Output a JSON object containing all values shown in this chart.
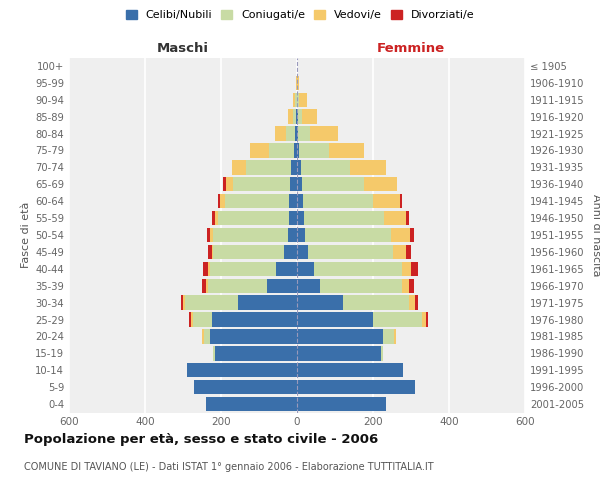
{
  "age_groups": [
    "0-4",
    "5-9",
    "10-14",
    "15-19",
    "20-24",
    "25-29",
    "30-34",
    "35-39",
    "40-44",
    "45-49",
    "50-54",
    "55-59",
    "60-64",
    "65-69",
    "70-74",
    "75-79",
    "80-84",
    "85-89",
    "90-94",
    "95-99",
    "100+"
  ],
  "birth_years": [
    "2001-2005",
    "1996-2000",
    "1991-1995",
    "1986-1990",
    "1981-1985",
    "1976-1980",
    "1971-1975",
    "1966-1970",
    "1961-1965",
    "1956-1960",
    "1951-1955",
    "1946-1950",
    "1941-1945",
    "1936-1940",
    "1931-1935",
    "1926-1930",
    "1921-1925",
    "1916-1920",
    "1911-1915",
    "1906-1910",
    "≤ 1905"
  ],
  "maschi": {
    "celibi": [
      240,
      270,
      290,
      215,
      230,
      225,
      155,
      80,
      55,
      35,
      25,
      22,
      20,
      18,
      15,
      8,
      4,
      2,
      1,
      0,
      0
    ],
    "coniugati": [
      0,
      0,
      0,
      5,
      15,
      50,
      140,
      155,
      175,
      185,
      195,
      185,
      170,
      150,
      120,
      65,
      25,
      8,
      4,
      1,
      0
    ],
    "vedovi": [
      0,
      0,
      0,
      0,
      5,
      5,
      5,
      5,
      5,
      5,
      8,
      8,
      12,
      20,
      35,
      50,
      30,
      15,
      5,
      1,
      0
    ],
    "divorziati": [
      0,
      0,
      0,
      0,
      0,
      5,
      5,
      10,
      12,
      10,
      10,
      8,
      5,
      8,
      0,
      0,
      0,
      0,
      0,
      0,
      0
    ]
  },
  "femmine": {
    "nubili": [
      235,
      310,
      280,
      220,
      225,
      200,
      120,
      60,
      45,
      28,
      22,
      18,
      16,
      12,
      10,
      5,
      3,
      2,
      1,
      0,
      0
    ],
    "coniugate": [
      0,
      0,
      0,
      5,
      30,
      130,
      175,
      215,
      230,
      225,
      225,
      210,
      185,
      165,
      130,
      80,
      30,
      10,
      5,
      1,
      0
    ],
    "vedove": [
      0,
      0,
      0,
      0,
      5,
      10,
      15,
      20,
      25,
      35,
      50,
      60,
      70,
      85,
      95,
      90,
      75,
      40,
      20,
      5,
      0
    ],
    "divorziate": [
      0,
      0,
      0,
      0,
      0,
      5,
      8,
      12,
      18,
      12,
      10,
      8,
      5,
      0,
      0,
      0,
      0,
      0,
      0,
      0,
      0
    ]
  },
  "colors": {
    "celibi_nubili": "#3a6faa",
    "coniugati": "#c8dba4",
    "vedovi": "#f5c96a",
    "divorziati": "#cc2222"
  },
  "xlim": 600,
  "title": "Popolazione per età, sesso e stato civile - 2006",
  "subtitle": "COMUNE DI TAVIANO (LE) - Dati ISTAT 1° gennaio 2006 - Elaborazione TUTTITALIA.IT",
  "xlabel_left": "Maschi",
  "xlabel_right": "Femmine",
  "ylabel_left": "Fasce di età",
  "ylabel_right": "Anni di nascita",
  "background_color": "#ffffff",
  "plot_bg_color": "#efefef"
}
